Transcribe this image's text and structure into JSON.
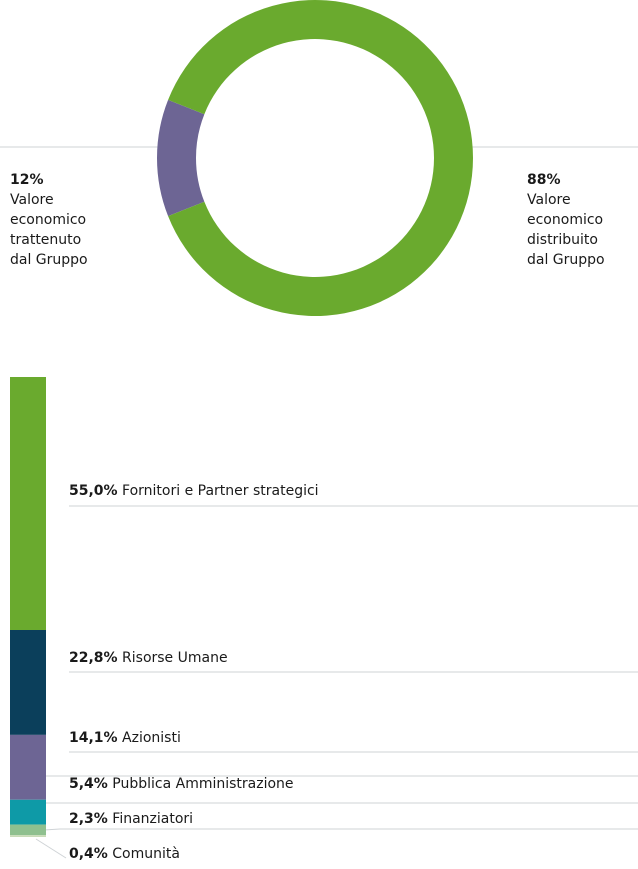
{
  "chart_data": [
    {
      "type": "donut",
      "categories": [
        "Valore economico trattenuto dal Gruppo",
        "Valore economico distribuito dal Gruppo"
      ],
      "values": [
        12,
        88
      ],
      "value_labels": [
        "12%",
        "88%"
      ],
      "colors": [
        "#6d6594",
        "#6aaa2e"
      ]
    },
    {
      "type": "stacked-column",
      "categories": [
        "Fornitori e Partner strategici",
        "Risorse Umane",
        "Azionisti",
        "Pubblica Amministrazione",
        "Finanziatori",
        "Comunità"
      ],
      "values": [
        55.0,
        22.8,
        14.1,
        5.4,
        2.3,
        0.4
      ],
      "value_labels": [
        "55,0%",
        "22,8%",
        "14,1%",
        "5,4%",
        "2,3%",
        "0,4%"
      ],
      "colors": [
        "#6aaa2e",
        "#0b3f5b",
        "#6d6594",
        "#0e9aa7",
        "#8fc08f",
        "#c9dcb8"
      ]
    }
  ]
}
